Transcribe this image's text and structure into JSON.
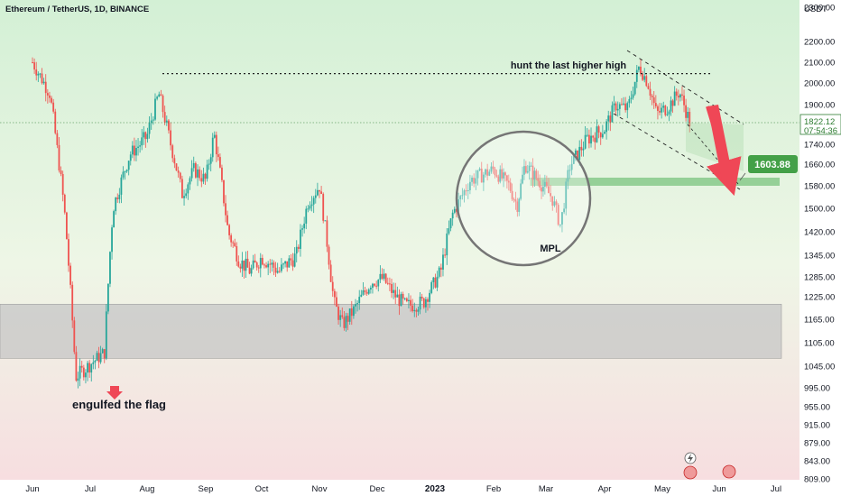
{
  "chart_data": {
    "type": "candlestick",
    "title": "Ethereum / TetherUS, 1D, BINANCE",
    "unit_label": "USDT",
    "y_ticks": [
      "2300.00",
      "2200.00",
      "2100.00",
      "2000.00",
      "1900.00",
      "1822.12",
      "1740.00",
      "1660.00",
      "1580.00",
      "1500.00",
      "1420.00",
      "1345.00",
      "1285.00",
      "1225.00",
      "1165.00",
      "1105.00",
      "1045.00",
      "995.00",
      "955.00",
      "915.00",
      "879.00",
      "843.00",
      "809.00"
    ],
    "y_ticks_values": [
      2300,
      2200,
      2100,
      2000,
      1900,
      1822.12,
      1740,
      1660,
      1580,
      1500,
      1420,
      1345,
      1285,
      1225,
      1165,
      1105,
      1045,
      995,
      955,
      915,
      879,
      843,
      809
    ],
    "x_ticks": [
      "Jun",
      "Jul",
      "Aug",
      "Sep",
      "Oct",
      "Nov",
      "Dec",
      "2023",
      "Feb",
      "Mar",
      "Apr",
      "May",
      "Jun",
      "Jul"
    ],
    "x_ticks_months": [
      0,
      1,
      2,
      3,
      4,
      5,
      6,
      7,
      8,
      9,
      10,
      11,
      12,
      13
    ],
    "current_price": "1822.12",
    "countdown": "07:54:36",
    "target_label": "1603.88",
    "target_value": 1603.88,
    "resistance_level": 2045,
    "supply_zone": [
      1580,
      1610
    ],
    "demand_zone": [
      1065,
      1205
    ],
    "annotations": {
      "top": "hunt the last higher high",
      "bottom": "engulfed the flag",
      "circle": "MPL"
    },
    "colors": {
      "up": "#26a69a",
      "down": "#ef5350",
      "zone_green": "#81c784",
      "zone_gray": "#b0b0b0",
      "arrow_red": "#ef4756",
      "price_tag": "#43a047"
    },
    "series_close_monthly": [
      {
        "month": "Jun",
        "close": 1070
      },
      {
        "month": "Jul",
        "close": 1680
      },
      {
        "month": "Aug",
        "close": 1550
      },
      {
        "month": "Sep",
        "close": 1330
      },
      {
        "month": "Oct",
        "close": 1580
      },
      {
        "month": "Nov",
        "close": 1290
      },
      {
        "month": "Dec",
        "close": 1195
      },
      {
        "month": "2023",
        "close": 1585
      },
      {
        "month": "Feb",
        "close": 1605
      },
      {
        "month": "Mar",
        "close": 1820
      },
      {
        "month": "Apr",
        "close": 1870
      },
      {
        "month": "May",
        "close": 1822
      }
    ]
  }
}
